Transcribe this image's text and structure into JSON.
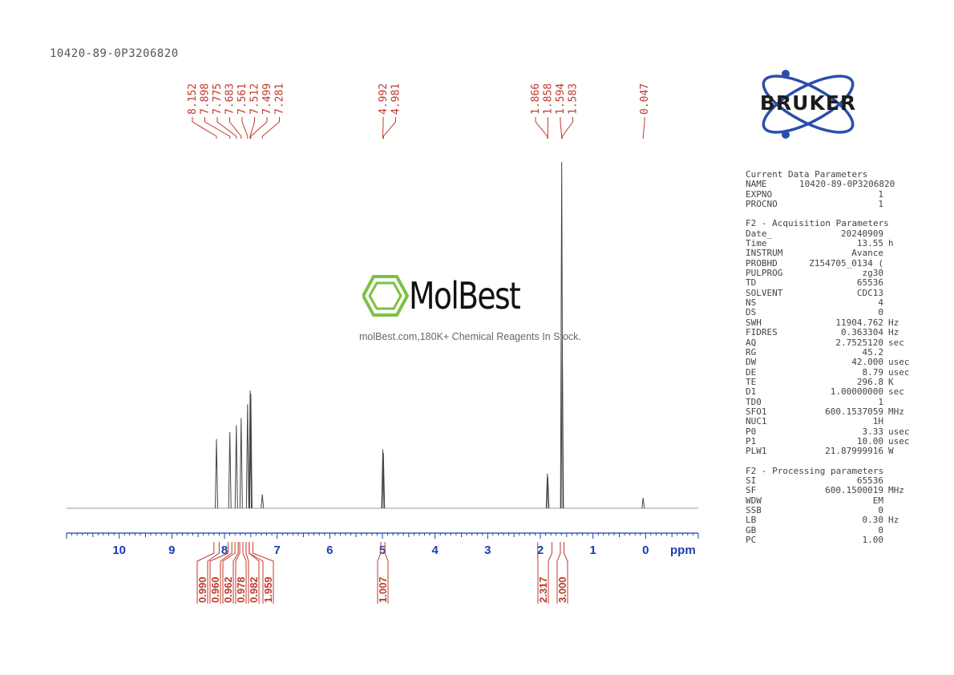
{
  "sample_name": "10420-89-0P3206820",
  "logo": {
    "text": "BRUKER",
    "accent_color": "#2a4fa8"
  },
  "watermark": {
    "name": "MolBest",
    "tagline": "molBest.com,180K+ Chemical Reagents In Stock.",
    "ring_color": "#7cc242"
  },
  "colors": {
    "peak_label": "#c0392b",
    "axis": "#1a3fb0",
    "trace": "#444444"
  },
  "chart_data": {
    "type": "line",
    "xlabel": "ppm",
    "xlim": [
      11.0,
      -1.0
    ],
    "x_reversed": true,
    "ticks": [
      10,
      9,
      8,
      7,
      6,
      5,
      4,
      3,
      2,
      1,
      0
    ],
    "tick_labels": [
      "10",
      "9",
      "8",
      "7",
      "6",
      "5",
      "4",
      "3",
      "2",
      "1",
      "0"
    ],
    "peak_labels": [
      "8.152",
      "7.898",
      "7.775",
      "7.683",
      "7.561",
      "7.512",
      "7.499",
      "7.281",
      "4.992",
      "4.981",
      "1.866",
      "1.858",
      "1.594",
      "1.583",
      "0.047"
    ],
    "peaks": [
      {
        "ppm": 8.152,
        "height": 0.2
      },
      {
        "ppm": 7.898,
        "height": 0.22
      },
      {
        "ppm": 7.775,
        "height": 0.24
      },
      {
        "ppm": 7.683,
        "height": 0.26
      },
      {
        "ppm": 7.561,
        "height": 0.3
      },
      {
        "ppm": 7.512,
        "height": 0.34
      },
      {
        "ppm": 7.499,
        "height": 0.33
      },
      {
        "ppm": 7.281,
        "height": 0.04
      },
      {
        "ppm": 4.992,
        "height": 0.17
      },
      {
        "ppm": 4.981,
        "height": 0.16
      },
      {
        "ppm": 1.866,
        "height": 0.1
      },
      {
        "ppm": 1.858,
        "height": 0.09
      },
      {
        "ppm": 1.594,
        "height": 1.0
      },
      {
        "ppm": 1.583,
        "height": 0.48
      },
      {
        "ppm": 0.047,
        "height": 0.03
      }
    ],
    "integrals": [
      {
        "from": 8.2,
        "to": 8.1,
        "value": "0.990"
      },
      {
        "from": 7.93,
        "to": 7.86,
        "value": "0.960"
      },
      {
        "from": 7.8,
        "to": 7.74,
        "value": "0.962"
      },
      {
        "from": 7.71,
        "to": 7.65,
        "value": "0.978"
      },
      {
        "from": 7.59,
        "to": 7.53,
        "value": "0.982"
      },
      {
        "from": 7.53,
        "to": 7.46,
        "value": "1.959"
      },
      {
        "from": 5.03,
        "to": 4.95,
        "value": "1.007"
      },
      {
        "from": 2.05,
        "to": 1.78,
        "value": "2.317"
      },
      {
        "from": 1.62,
        "to": 1.55,
        "value": "3.000"
      }
    ]
  },
  "parameters": [
    {
      "heading": "Current Data Parameters",
      "rows": [
        {
          "key": "NAME",
          "value": "10420-89-0P3206820",
          "unit": ""
        },
        {
          "key": "EXPNO",
          "value": "1",
          "unit": ""
        },
        {
          "key": "PROCNO",
          "value": "1",
          "unit": ""
        }
      ]
    },
    {
      "heading": "F2 - Acquisition Parameters",
      "rows": [
        {
          "key": "Date_",
          "value": "20240909",
          "unit": ""
        },
        {
          "key": "Time",
          "value": "13.55",
          "unit": "h"
        },
        {
          "key": "INSTRUM",
          "value": "Avance",
          "unit": ""
        },
        {
          "key": "PROBHD",
          "value": "Z154705_0134 (",
          "unit": ""
        },
        {
          "key": "PULPROG",
          "value": "zg30",
          "unit": ""
        },
        {
          "key": "TD",
          "value": "65536",
          "unit": ""
        },
        {
          "key": "SOLVENT",
          "value": "CDC13",
          "unit": ""
        },
        {
          "key": "NS",
          "value": "4",
          "unit": ""
        },
        {
          "key": "DS",
          "value": "0",
          "unit": ""
        },
        {
          "key": "SWH",
          "value": "11904.762",
          "unit": "Hz"
        },
        {
          "key": "FIDRES",
          "value": "0.363304",
          "unit": "Hz"
        },
        {
          "key": "AQ",
          "value": "2.7525120",
          "unit": "sec"
        },
        {
          "key": "RG",
          "value": "45.2",
          "unit": ""
        },
        {
          "key": "DW",
          "value": "42.000",
          "unit": "usec"
        },
        {
          "key": "DE",
          "value": "8.79",
          "unit": "usec"
        },
        {
          "key": "TE",
          "value": "296.8",
          "unit": "K"
        },
        {
          "key": "D1",
          "value": "1.00000000",
          "unit": "sec"
        },
        {
          "key": "TD0",
          "value": "1",
          "unit": ""
        },
        {
          "key": "SFO1",
          "value": "600.1537059",
          "unit": "MHz"
        },
        {
          "key": "NUC1",
          "value": "1H",
          "unit": ""
        },
        {
          "key": "P0",
          "value": "3.33",
          "unit": "usec"
        },
        {
          "key": "P1",
          "value": "10.00",
          "unit": "usec"
        },
        {
          "key": "PLW1",
          "value": "21.87999916",
          "unit": "W"
        }
      ]
    },
    {
      "heading": "F2 - Processing parameters",
      "rows": [
        {
          "key": "SI",
          "value": "65536",
          "unit": ""
        },
        {
          "key": "SF",
          "value": "600.1500019",
          "unit": "MHz"
        },
        {
          "key": "WDW",
          "value": "EM",
          "unit": ""
        },
        {
          "key": "SSB",
          "value": "0",
          "unit": ""
        },
        {
          "key": "LB",
          "value": "0.30",
          "unit": "Hz"
        },
        {
          "key": "GB",
          "value": "0",
          "unit": ""
        },
        {
          "key": "PC",
          "value": "1.00",
          "unit": ""
        }
      ]
    }
  ]
}
